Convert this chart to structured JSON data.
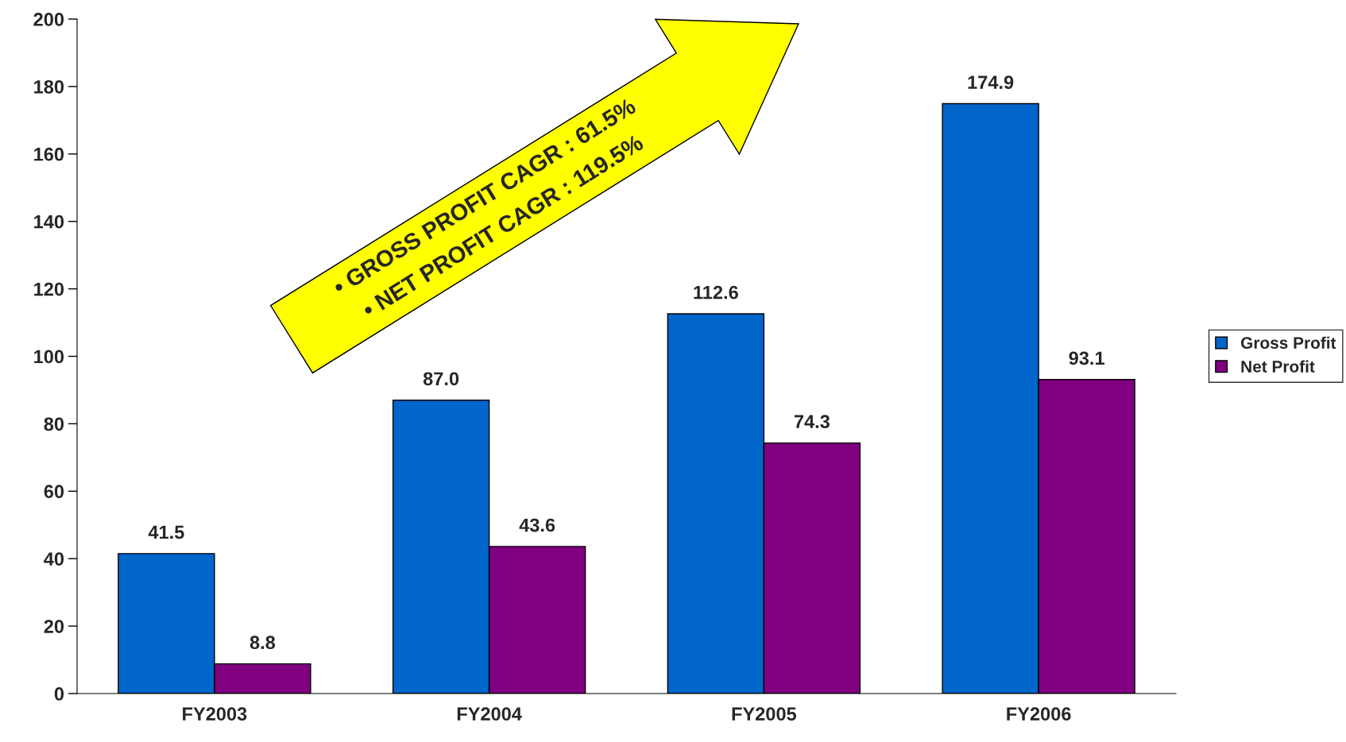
{
  "chart_data": {
    "type": "bar",
    "categories": [
      "FY2003",
      "FY2004",
      "FY2005",
      "FY2006"
    ],
    "series": [
      {
        "name": "Gross Profit",
        "color": "#0066cc",
        "values": [
          41.5,
          87.0,
          112.6,
          174.9
        ]
      },
      {
        "name": "Net Profit",
        "color": "#800080",
        "values": [
          8.8,
          43.6,
          74.3,
          93.1
        ]
      }
    ],
    "value_labels": [
      [
        "41.5",
        "87.0",
        "112.6",
        "174.9"
      ],
      [
        "8.8",
        "43.6",
        "74.3",
        "93.1"
      ]
    ],
    "annotations": [
      "• GROSS PROFIT CAGR : 61.5%",
      "• NET PROFIT CAGR : 119.5%"
    ],
    "ylim": [
      0,
      200
    ],
    "yticks": [
      0,
      20,
      40,
      60,
      80,
      100,
      120,
      140,
      160,
      180,
      200
    ],
    "grid": false,
    "legend": "right"
  }
}
